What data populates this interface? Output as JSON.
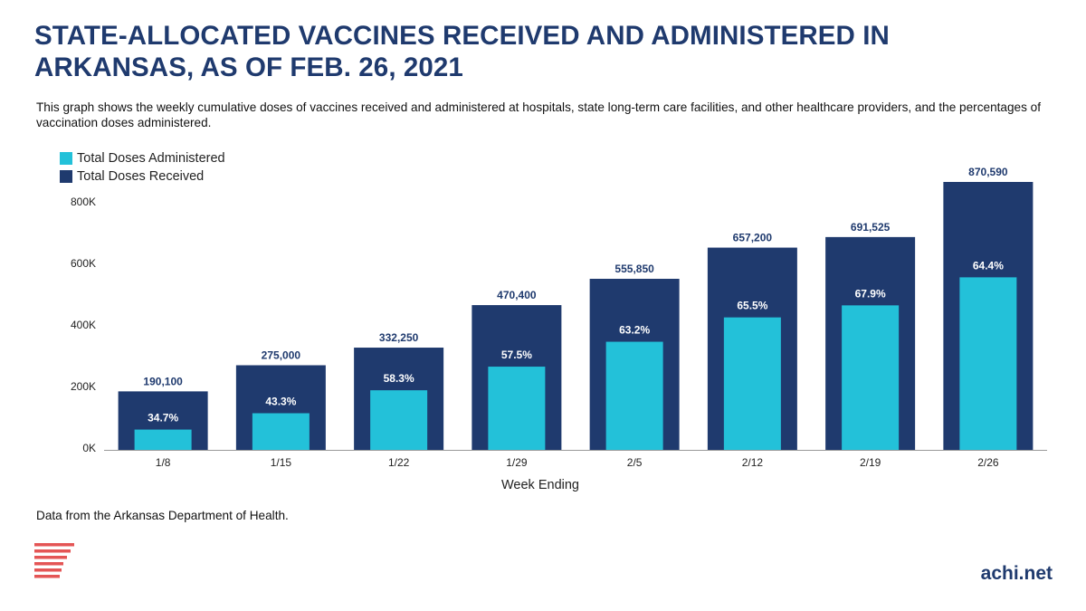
{
  "header": {
    "title": "STATE-ALLOCATED VACCINES RECEIVED AND ADMINISTERED IN ARKANSAS, AS OF FEB. 26, 2021",
    "subtitle": "This graph shows the weekly cumulative doses of vaccines received and administered at hospitals, state long-term care facilities, and other healthcare providers, and the percentages of vaccination doses administered."
  },
  "colors": {
    "received": "#1f3a6e",
    "administered": "#23c1d9",
    "title": "#1f3a6e",
    "logo": "#e45555"
  },
  "chart_data": {
    "type": "bar",
    "xlabel": "Week Ending",
    "ylabel": "",
    "ylim": [
      0,
      800000
    ],
    "ytick_values": [
      0,
      200000,
      400000,
      600000,
      800000
    ],
    "ytick_labels": [
      "0K",
      "200K",
      "400K",
      "600K",
      "800K"
    ],
    "categories": [
      "1/8",
      "1/15",
      "1/22",
      "1/29",
      "2/5",
      "2/12",
      "2/19",
      "2/26"
    ],
    "series": [
      {
        "name": "Total Doses Received",
        "values": [
          190100,
          275000,
          332250,
          470400,
          555850,
          657200,
          691525,
          870590
        ],
        "labels": [
          "190,100",
          "275,000",
          "332,250",
          "470,400",
          "555,850",
          "657,200",
          "691,525",
          "870,590"
        ]
      },
      {
        "name": "Total Doses Administered",
        "percent_labels": [
          "34.7%",
          "43.3%",
          "58.3%",
          "57.5%",
          "63.2%",
          "65.5%",
          "67.9%",
          "64.4%"
        ],
        "percent_values": [
          34.7,
          43.3,
          58.3,
          57.5,
          63.2,
          65.5,
          67.9,
          64.4
        ]
      }
    ],
    "legend": [
      "Total Doses Administered",
      "Total Doses Received"
    ],
    "legend_position": "top-left"
  },
  "footer": {
    "source": "Data from the Arkansas Department of Health.",
    "site": "achi.net"
  }
}
